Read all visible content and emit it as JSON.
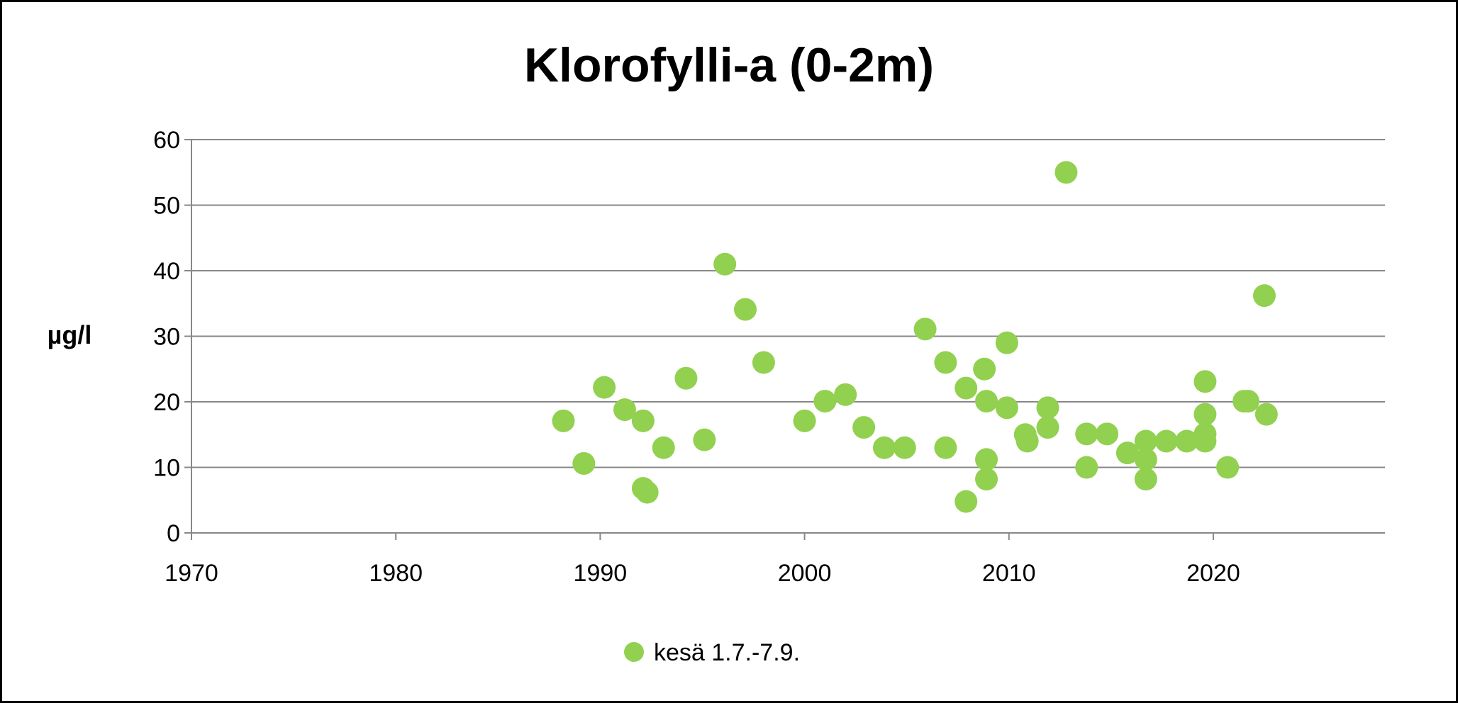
{
  "chart_data": {
    "type": "scatter",
    "title": "Klorofylli-a (0-2m)",
    "xlabel": "",
    "ylabel": "µg/l",
    "xlim": [
      1970,
      2028.4
    ],
    "ylim": [
      0,
      60
    ],
    "x_ticks": [
      1970,
      1980,
      1990,
      2000,
      2010,
      2020
    ],
    "y_ticks": [
      0,
      10,
      20,
      30,
      40,
      50,
      60
    ],
    "grid": "horizontal",
    "legend_position": "bottom",
    "colors": {
      "series": "#92d050",
      "grid": "#888888",
      "text": "#000000"
    },
    "series": [
      {
        "name": "kesä 1.7.-7.9.",
        "points": [
          [
            1988.2,
            17.1
          ],
          [
            1989.2,
            10.6
          ],
          [
            1990.2,
            22.2
          ],
          [
            1991.2,
            18.8
          ],
          [
            1992.1,
            17.1
          ],
          [
            1992.1,
            6.8
          ],
          [
            1992.3,
            6.2
          ],
          [
            1993.1,
            13.0
          ],
          [
            1994.2,
            23.6
          ],
          [
            1995.1,
            14.2
          ],
          [
            1996.1,
            41.0
          ],
          [
            1997.1,
            34.1
          ],
          [
            1998.0,
            26.0
          ],
          [
            2000.0,
            17.1
          ],
          [
            2001.0,
            20.1
          ],
          [
            2002.0,
            21.1
          ],
          [
            2002.9,
            16.1
          ],
          [
            2003.9,
            13.0
          ],
          [
            2004.9,
            13.0
          ],
          [
            2005.9,
            31.1
          ],
          [
            2006.9,
            26.0
          ],
          [
            2006.9,
            13.0
          ],
          [
            2007.9,
            22.1
          ],
          [
            2007.9,
            4.8
          ],
          [
            2008.8,
            25.0
          ],
          [
            2008.9,
            20.1
          ],
          [
            2008.9,
            11.2
          ],
          [
            2008.9,
            8.2
          ],
          [
            2009.9,
            29.0
          ],
          [
            2009.9,
            19.1
          ],
          [
            2010.8,
            15.0
          ],
          [
            2010.9,
            14.0
          ],
          [
            2011.9,
            19.1
          ],
          [
            2011.9,
            16.1
          ],
          [
            2012.8,
            55.0
          ],
          [
            2013.8,
            15.1
          ],
          [
            2013.8,
            10.0
          ],
          [
            2014.8,
            15.1
          ],
          [
            2015.8,
            12.2
          ],
          [
            2016.7,
            14.0
          ],
          [
            2016.7,
            11.2
          ],
          [
            2016.7,
            8.2
          ],
          [
            2017.7,
            14.0
          ],
          [
            2018.7,
            14.0
          ],
          [
            2019.6,
            23.1
          ],
          [
            2019.6,
            18.1
          ],
          [
            2019.6,
            15.1
          ],
          [
            2019.6,
            14.0
          ],
          [
            2020.7,
            10.0
          ],
          [
            2021.5,
            20.1
          ],
          [
            2021.7,
            20.1
          ],
          [
            2022.5,
            36.2
          ],
          [
            2022.6,
            18.1
          ]
        ]
      }
    ]
  }
}
